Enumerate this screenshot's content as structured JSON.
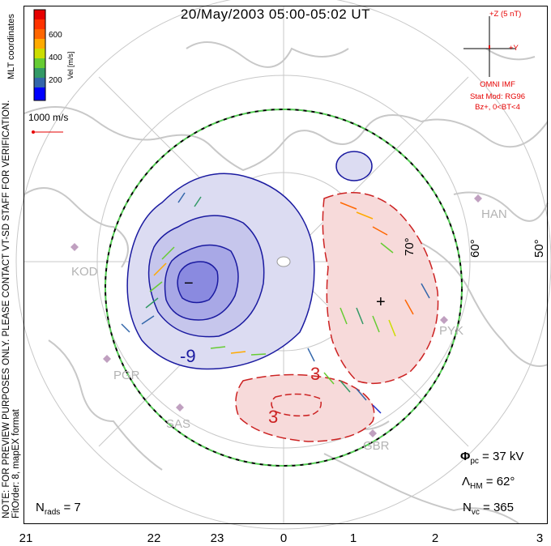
{
  "title": "20/May/2003 05:00-05:02 UT",
  "mlt_labels": [
    "21",
    "22",
    "23",
    "0",
    "1",
    "2",
    "3"
  ],
  "lat_labels": [
    "70°",
    "60°",
    "50°"
  ],
  "stations": [
    "KOD",
    "PGR",
    "SAS",
    "HAN",
    "PYK",
    "GBR"
  ],
  "colorbar": {
    "title": "Vel [m/s]",
    "ticks": [
      "600",
      "400",
      "200"
    ],
    "colors": [
      "#e60000",
      "#ff6600",
      "#ffaa00",
      "#ccdd00",
      "#66cc33",
      "#339966",
      "#3366aa",
      "#2233cc",
      "#0000ff"
    ]
  },
  "coord_label": "MLT coordinates",
  "velocity_scale": "1000 m/s",
  "note_line1": "NOTE: FOR PREVIEW PURPOSES ONLY. PLEASE CONTACT VT-SD STAFF FOR VERIFICATION.",
  "note_line2": "FitOrder: 8, mapEX format",
  "imf": {
    "z_label": "+Z (5 nT)",
    "y_label": "+Y",
    "source": "OMNI IMF",
    "stat_mod": "Stat Mod: RG96",
    "condition": "Bz+, 0<BT<4"
  },
  "stats": {
    "phi_label": "Φ",
    "phi_sub": "pc",
    "phi_value": "= 37 kV",
    "lambda_label": "Λ",
    "lambda_sub": "HM",
    "lambda_value": "= 62°",
    "nvc_label": "N",
    "nvc_sub": "vc",
    "nvc_value": "= 365",
    "nrads_label": "N",
    "nrads_sub": "rads",
    "nrads_value": "= 7"
  },
  "contour_labels": [
    "-9",
    "3",
    "3"
  ],
  "focus_markers": [
    "−",
    "+"
  ],
  "colors": {
    "negative_cell": "#b3b3e6",
    "negative_cell_inner": "#8080e0",
    "positive_cell": "#f2c6c6",
    "boundary": "#55cc55",
    "coast": "#c8c8c8"
  }
}
